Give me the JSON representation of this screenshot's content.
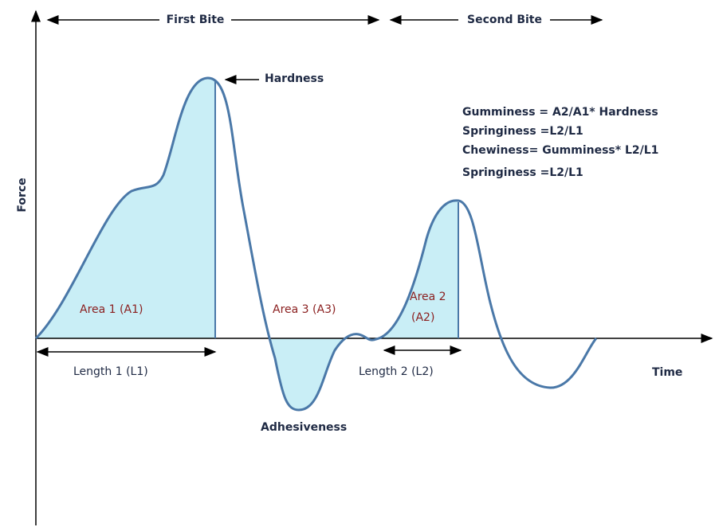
{
  "header": {
    "first_bite": "First Bite",
    "second_bite": "Second Bite"
  },
  "axes": {
    "y": "Force",
    "x": "Time"
  },
  "labels": {
    "hardness": "Hardness",
    "adhesiveness": "Adhesiveness",
    "area1": "Area 1 (A1)",
    "area3": "Area 3 (A3)",
    "area2": [
      "Area 2",
      "(A2)"
    ],
    "length1": "Length 1 (L1)",
    "length2": "Length 2 (L2)"
  },
  "formulas": [
    "Gumminess = A2/A1* Hardness",
    "Springiness =L2/L1",
    "Chewiness= Gumminess* L2/L1",
    "Springiness =L2/L1"
  ]
}
